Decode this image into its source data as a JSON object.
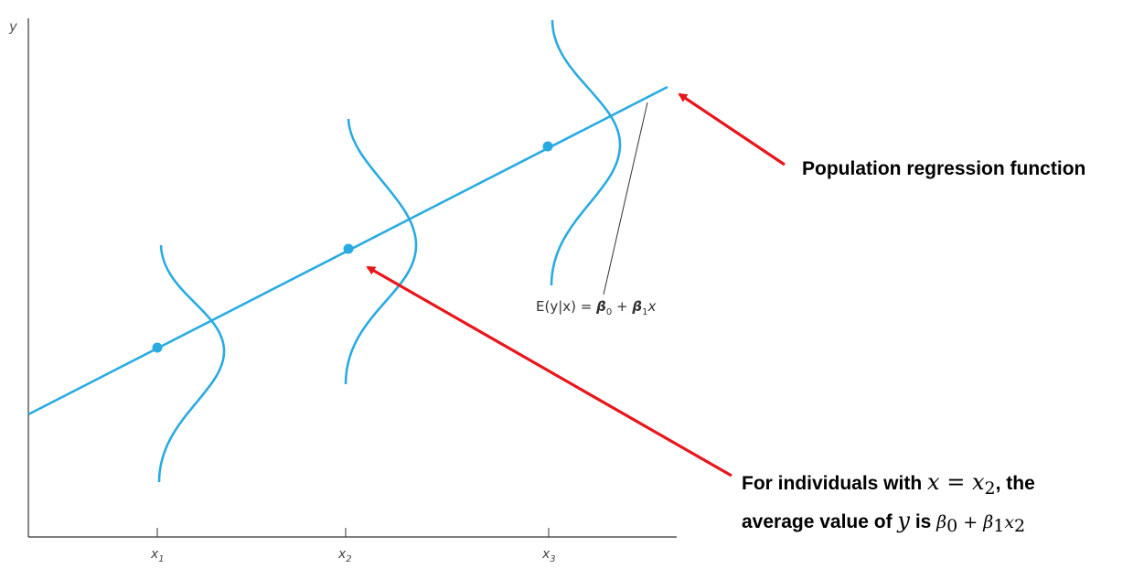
{
  "axes": {
    "y_label": "y",
    "x_ticks": [
      {
        "base": "x",
        "sub": "1"
      },
      {
        "base": "x",
        "sub": "2"
      },
      {
        "base": "x",
        "sub": "3"
      }
    ]
  },
  "equation": {
    "lhs": "E(y|x)",
    "eq": " = ",
    "beta": "β",
    "sub0": "0",
    "plus": " + ",
    "sub1": "1",
    "x": "x"
  },
  "annotations": {
    "prf": "Population regression function",
    "avg_line1_prefix": "For individuals with ",
    "avg_x": "x",
    "avg_eq": " = ",
    "avg_x2": "x",
    "avg_x2_sub": "2",
    "avg_line1_suffix": ", the",
    "avg_line2_prefix": "average value of ",
    "avg_y": "y",
    "avg_is": " is ",
    "avg_beta": "β",
    "avg_b0_sub": "0",
    "avg_plus": " + ",
    "avg_beta2": "β",
    "avg_b1_sub": "1",
    "avg_x2b": "x",
    "avg_x2b_sub": "2"
  },
  "colors": {
    "curve": "#29abe2",
    "arrow": "#e8161b",
    "axis": "#333333"
  }
}
